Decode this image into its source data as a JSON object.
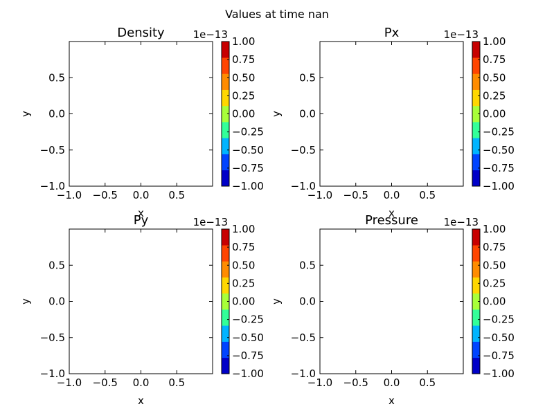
{
  "figure": {
    "suptitle": "Values at time nan"
  },
  "chart_data": [
    {
      "type": "heatmap",
      "title": "Density",
      "xlabel": "x",
      "ylabel": "y",
      "xlim": [
        -1.0,
        1.0
      ],
      "ylim": [
        -1.0,
        1.0
      ],
      "xticks": [
        "−1.0",
        "−0.5",
        "0.0",
        "0.5"
      ],
      "yticks": [
        "−1.0",
        "−0.5",
        "0.0",
        "0.5"
      ],
      "values": [],
      "colorbar": {
        "offset_label": "1e−13",
        "ticks": [
          "−1.00",
          "−0.75",
          "−0.50",
          "−0.25",
          "0.00",
          "0.25",
          "0.50",
          "0.75",
          "1.00"
        ],
        "colors": [
          "#0000c8",
          "#0044ff",
          "#00b4ff",
          "#33ff99",
          "#a8ff3a",
          "#ffd700",
          "#ff8c00",
          "#ff4500",
          "#c80000"
        ]
      },
      "grid": false
    },
    {
      "type": "heatmap",
      "title": "Px",
      "xlabel": "x",
      "ylabel": "y",
      "xlim": [
        -1.0,
        1.0
      ],
      "ylim": [
        -1.0,
        1.0
      ],
      "xticks": [
        "−1.0",
        "−0.5",
        "0.0",
        "0.5"
      ],
      "yticks": [
        "−1.0",
        "−0.5",
        "0.0",
        "0.5"
      ],
      "values": [],
      "colorbar": {
        "offset_label": "1e−13",
        "ticks": [
          "−1.00",
          "−0.75",
          "−0.50",
          "−0.25",
          "0.00",
          "0.25",
          "0.50",
          "0.75",
          "1.00"
        ],
        "colors": [
          "#0000c8",
          "#0044ff",
          "#00b4ff",
          "#33ff99",
          "#a8ff3a",
          "#ffd700",
          "#ff8c00",
          "#ff4500",
          "#c80000"
        ]
      },
      "grid": false
    },
    {
      "type": "heatmap",
      "title": "Py",
      "xlabel": "x",
      "ylabel": "y",
      "xlim": [
        -1.0,
        1.0
      ],
      "ylim": [
        -1.0,
        1.0
      ],
      "xticks": [
        "−1.0",
        "−0.5",
        "0.0",
        "0.5"
      ],
      "yticks": [
        "−1.0",
        "−0.5",
        "0.0",
        "0.5"
      ],
      "values": [],
      "colorbar": {
        "offset_label": "1e−13",
        "ticks": [
          "−1.00",
          "−0.75",
          "−0.50",
          "−0.25",
          "0.00",
          "0.25",
          "0.50",
          "0.75",
          "1.00"
        ],
        "colors": [
          "#0000c8",
          "#0044ff",
          "#00b4ff",
          "#33ff99",
          "#a8ff3a",
          "#ffd700",
          "#ff8c00",
          "#ff4500",
          "#c80000"
        ]
      },
      "grid": false
    },
    {
      "type": "heatmap",
      "title": "Pressure",
      "xlabel": "x",
      "ylabel": "y",
      "xlim": [
        -1.0,
        1.0
      ],
      "ylim": [
        -1.0,
        1.0
      ],
      "xticks": [
        "−1.0",
        "−0.5",
        "0.0",
        "0.5"
      ],
      "yticks": [
        "−1.0",
        "−0.5",
        "0.0",
        "0.5"
      ],
      "values": [],
      "colorbar": {
        "offset_label": "1e−13",
        "ticks": [
          "−1.00",
          "−0.75",
          "−0.50",
          "−0.25",
          "0.00",
          "0.25",
          "0.50",
          "0.75",
          "1.00"
        ],
        "colors": [
          "#0000c8",
          "#0044ff",
          "#00b4ff",
          "#33ff99",
          "#a8ff3a",
          "#ffd700",
          "#ff8c00",
          "#ff4500",
          "#c80000"
        ]
      },
      "grid": false
    }
  ]
}
